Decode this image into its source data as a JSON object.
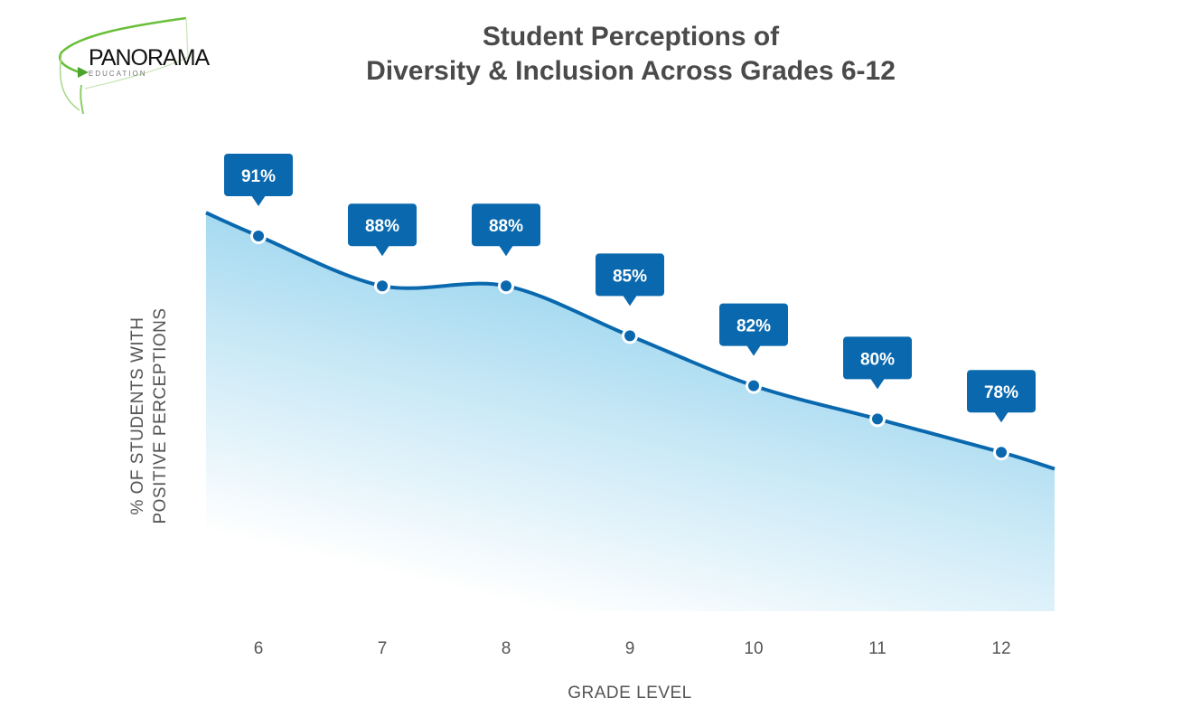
{
  "logo": {
    "name": "PANORAMA",
    "sub": "EDUCATION"
  },
  "chart_data": {
    "type": "area",
    "title": [
      "Student Perceptions of",
      "Diversity & Inclusion Across Grades 6-12"
    ],
    "xlabel": "GRADE LEVEL",
    "ylabel": [
      "% OF STUDENTS WITH",
      "POSITIVE PERCEPTIONS"
    ],
    "categories": [
      "6",
      "7",
      "8",
      "9",
      "10",
      "11",
      "12"
    ],
    "values": [
      91,
      88,
      88,
      85,
      82,
      80,
      78
    ],
    "data_labels": [
      "91%",
      "88%",
      "88%",
      "85%",
      "82%",
      "80%",
      "78%"
    ],
    "grid": false,
    "legend": "none",
    "colors": {
      "line": "#0a69ae",
      "callout": "#0a69ae",
      "fill": "#8fd0ec",
      "text": "#4a4a4a"
    }
  }
}
